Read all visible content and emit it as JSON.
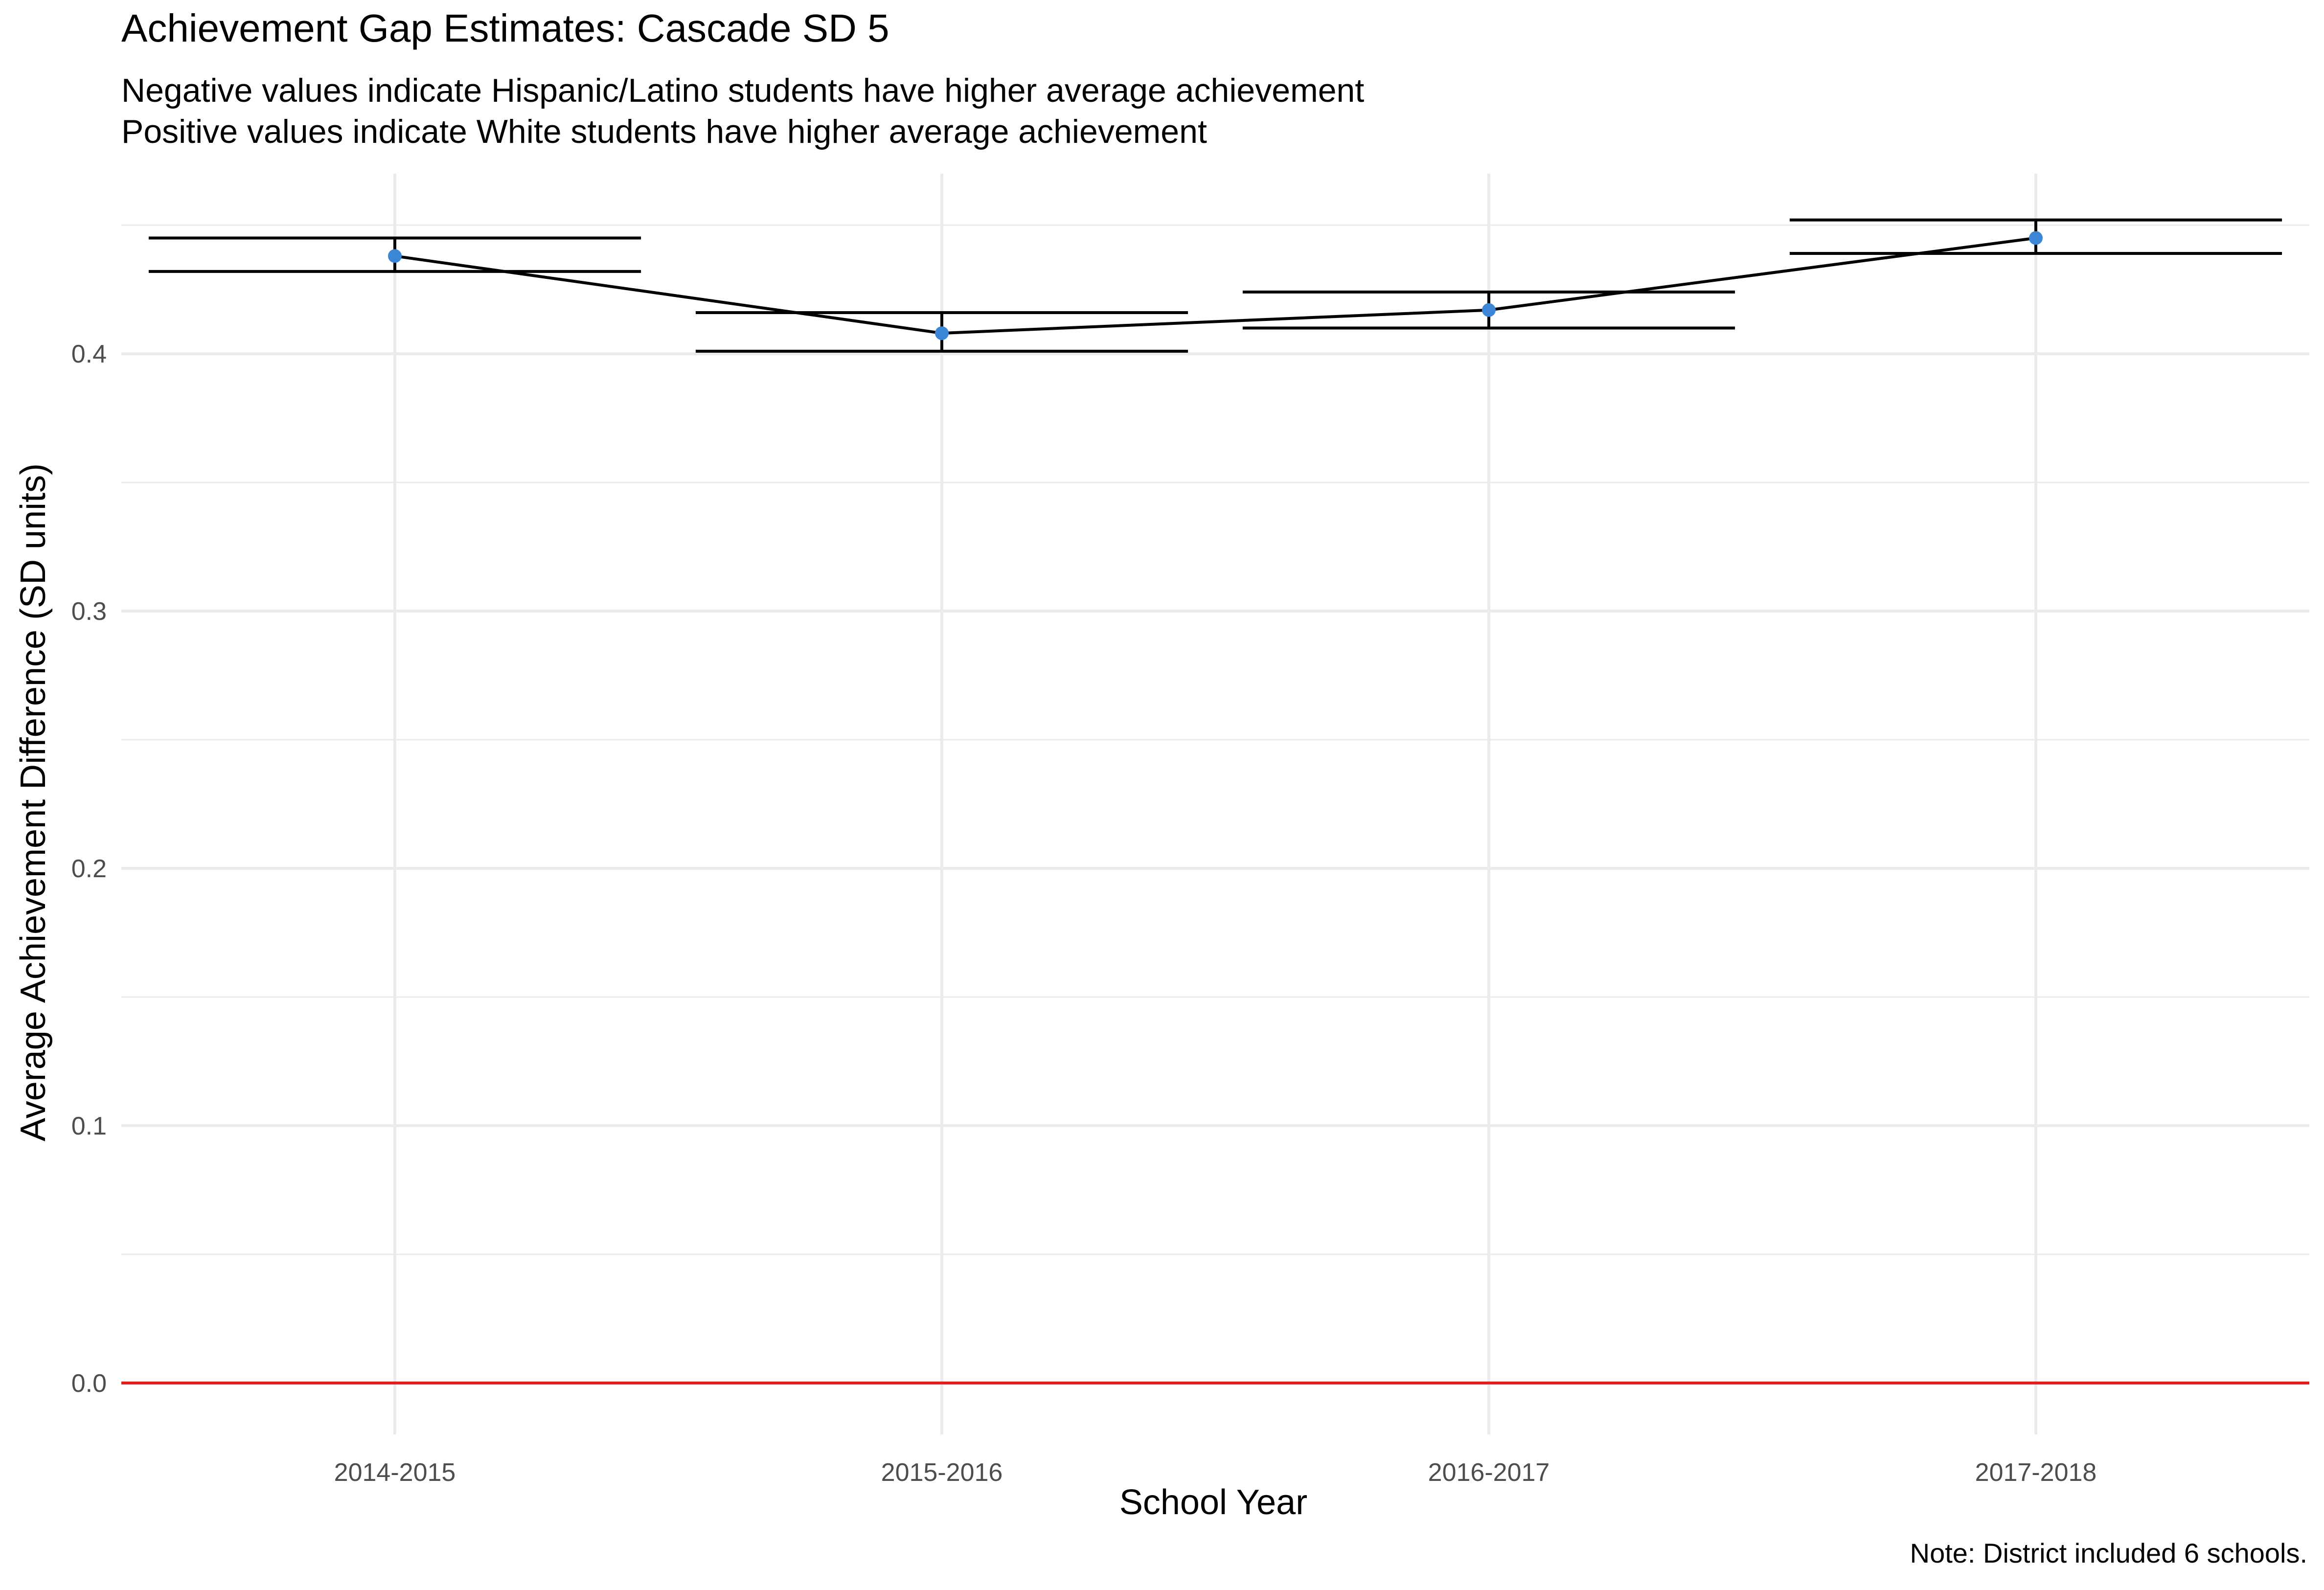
{
  "chart_data": {
    "type": "line",
    "title": "Achievement Gap Estimates: Cascade SD 5",
    "subtitle_lines": [
      "Negative values indicate Hispanic/Latino students have higher average achievement",
      "Positive values indicate White students have higher average achievement"
    ],
    "caption": "Note: District included 6 schools.",
    "xlabel": "School Year",
    "ylabel": "Average Achievement Difference (SD units)",
    "categories": [
      "2014-2015",
      "2015-2016",
      "2016-2017",
      "2017-2018"
    ],
    "series": [
      {
        "values": [
          0.438,
          0.408,
          0.417,
          0.445
        ],
        "lower": [
          0.432,
          0.401,
          0.41,
          0.439
        ],
        "upper": [
          0.445,
          0.416,
          0.424,
          0.452
        ],
        "point_color": "#3b87d6",
        "line_color": "#000000"
      }
    ],
    "yticks": [
      0.0,
      0.1,
      0.2,
      0.3,
      0.4
    ],
    "ytick_labels": [
      "0.0",
      "0.1",
      "0.2",
      "0.3",
      "0.4"
    ],
    "ylim": [
      -0.02,
      0.47
    ],
    "reference_line": {
      "y": 0.0,
      "color": "#e02020"
    },
    "grid": true,
    "grid_color": "#ebebeb"
  }
}
